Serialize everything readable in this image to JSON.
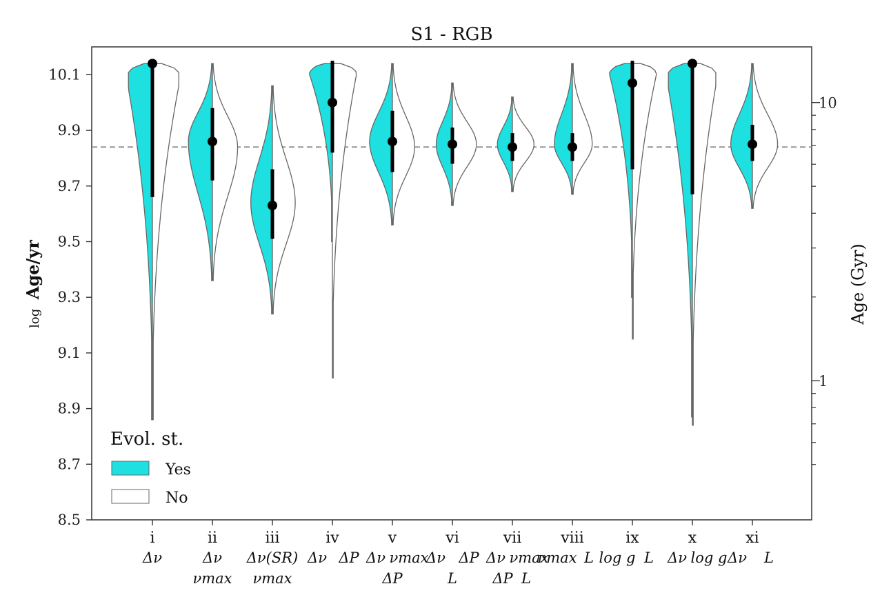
{
  "chart_data": {
    "type": "violin",
    "title": "S1 - RGB",
    "ylabel": {
      "prefix": "log",
      "main": "Age/yr"
    },
    "ylabel_right": "Age (Gyr)",
    "ylim": [
      8.5,
      10.2
    ],
    "yticks": [
      {
        "value": 8.5,
        "label": "8.5"
      },
      {
        "value": 8.7,
        "label": "8.7"
      },
      {
        "value": 8.9,
        "label": "8.9"
      },
      {
        "value": 9.1,
        "label": "9.1"
      },
      {
        "value": 9.3,
        "label": "9.3"
      },
      {
        "value": 9.5,
        "label": "9.5"
      },
      {
        "value": 9.7,
        "label": "9.7"
      },
      {
        "value": 9.9,
        "label": "9.9"
      },
      {
        "value": 10.1,
        "label": "10.1"
      }
    ],
    "yticks_right": [
      {
        "value": 1,
        "label": "1"
      },
      {
        "value": 10,
        "label": "10"
      }
    ],
    "reference_line": 9.84,
    "legend": {
      "title": "Evol. st.",
      "position": "lower-left",
      "entries": [
        {
          "label": "Yes",
          "color": "#1ee0e0"
        },
        {
          "label": "No",
          "color": "#ffffff"
        }
      ]
    },
    "colors": {
      "yes_fill": "#1ee0e0",
      "no_fill": "#ffffff",
      "outline": "#666666",
      "marker": "#000000",
      "refline": "#888888"
    },
    "categories": [
      {
        "label": "i",
        "lines": [
          "Δν"
        ],
        "yes": {
          "min": 8.86,
          "max": 10.14,
          "peak": 10.05,
          "width": 0.4,
          "shape": "top"
        },
        "no": {
          "min": 8.86,
          "max": 10.14,
          "peak": 10.06,
          "width": 0.44,
          "shape": "top"
        },
        "median": 10.14,
        "ci": [
          9.66,
          10.14
        ]
      },
      {
        "label": "ii",
        "lines": [
          "Δν",
          "νmax"
        ],
        "yes": {
          "min": 9.36,
          "max": 10.14,
          "peak": 9.86,
          "width": 0.4,
          "shape": "peak"
        },
        "no": {
          "min": 9.36,
          "max": 10.14,
          "peak": 9.84,
          "width": 0.42,
          "shape": "peak"
        },
        "median": 9.86,
        "ci": [
          9.72,
          9.98
        ]
      },
      {
        "label": "iii",
        "lines": [
          "Δν(SR)",
          "νmax"
        ],
        "yes": {
          "min": 9.24,
          "max": 10.06,
          "peak": 9.64,
          "width": 0.36,
          "shape": "peak"
        },
        "no": {
          "min": 9.24,
          "max": 10.06,
          "peak": 9.64,
          "width": 0.38,
          "shape": "peak"
        },
        "median": 9.63,
        "ci": [
          9.51,
          9.76
        ]
      },
      {
        "label": "iv",
        "lines": [
          "Δν",
          "ΔP"
        ],
        "yes": {
          "min": 9.5,
          "max": 10.14,
          "peak": 10.1,
          "width": 0.38,
          "shape": "top"
        },
        "no": {
          "min": 9.01,
          "max": 10.14,
          "peak": 10.1,
          "width": 0.4,
          "shape": "top"
        },
        "median": 10.0,
        "ci": [
          9.82,
          10.15
        ]
      },
      {
        "label": "v",
        "lines": [
          "Δν",
          "νmax",
          "ΔP"
        ],
        "yes": {
          "min": 9.56,
          "max": 10.14,
          "peak": 9.86,
          "width": 0.38,
          "shape": "peak"
        },
        "no": {
          "min": 9.56,
          "max": 10.14,
          "peak": 9.84,
          "width": 0.37,
          "shape": "peak"
        },
        "median": 9.86,
        "ci": [
          9.75,
          9.97
        ]
      },
      {
        "label": "vi",
        "lines": [
          "Δν",
          "ΔP",
          "L"
        ],
        "yes": {
          "min": 9.63,
          "max": 10.07,
          "peak": 9.85,
          "width": 0.27,
          "shape": "peak"
        },
        "no": {
          "min": 9.63,
          "max": 10.07,
          "peak": 9.85,
          "width": 0.4,
          "shape": "peak"
        },
        "median": 9.85,
        "ci": [
          9.78,
          9.91
        ]
      },
      {
        "label": "vii",
        "lines": [
          "Δν",
          "νmax",
          "ΔP",
          "L"
        ],
        "yes": {
          "min": 9.68,
          "max": 10.02,
          "peak": 9.85,
          "width": 0.25,
          "shape": "peak"
        },
        "no": {
          "min": 9.68,
          "max": 10.02,
          "peak": 9.85,
          "width": 0.36,
          "shape": "peak"
        },
        "median": 9.84,
        "ci": [
          9.79,
          9.89
        ]
      },
      {
        "label": "viii",
        "lines": [
          "νmax",
          "L"
        ],
        "yes": {
          "min": 9.67,
          "max": 10.14,
          "peak": 9.85,
          "width": 0.3,
          "shape": "peak"
        },
        "no": {
          "min": 9.67,
          "max": 10.14,
          "peak": 9.85,
          "width": 0.33,
          "shape": "peak"
        },
        "median": 9.84,
        "ci": [
          9.79,
          9.89
        ]
      },
      {
        "label": "ix",
        "lines": [
          "log g",
          "L"
        ],
        "yes": {
          "min": 9.3,
          "max": 10.14,
          "peak": 10.1,
          "width": 0.38,
          "shape": "top"
        },
        "no": {
          "min": 9.15,
          "max": 10.14,
          "peak": 10.1,
          "width": 0.4,
          "shape": "top"
        },
        "median": 10.07,
        "ci": [
          9.76,
          10.15
        ]
      },
      {
        "label": "x",
        "lines": [
          "Δν",
          "log g"
        ],
        "yes": {
          "min": 8.87,
          "max": 10.14,
          "peak": 10.05,
          "width": 0.4,
          "shape": "top"
        },
        "no": {
          "min": 8.84,
          "max": 10.14,
          "peak": 10.06,
          "width": 0.39,
          "shape": "top"
        },
        "median": 10.14,
        "ci": [
          9.67,
          10.14
        ]
      },
      {
        "label": "xi",
        "lines": [
          "Δν",
          "L"
        ],
        "yes": {
          "min": 9.62,
          "max": 10.14,
          "peak": 9.85,
          "width": 0.36,
          "shape": "peak"
        },
        "no": {
          "min": 9.62,
          "max": 10.14,
          "peak": 9.85,
          "width": 0.42,
          "shape": "peak"
        },
        "median": 9.85,
        "ci": [
          9.79,
          9.92
        ]
      }
    ]
  }
}
